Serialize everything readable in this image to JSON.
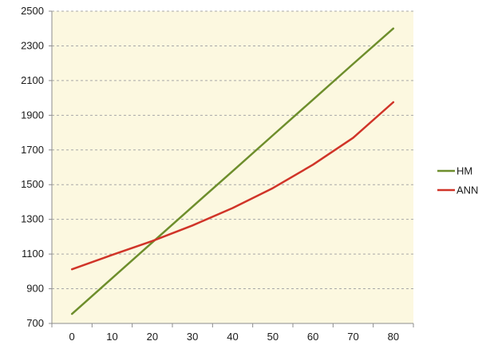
{
  "chart_data": {
    "type": "line",
    "title": "",
    "xlabel": "",
    "ylabel": "",
    "x": [
      0,
      10,
      20,
      30,
      40,
      50,
      60,
      70,
      80
    ],
    "x_tick_labels": [
      "0",
      "10",
      "20",
      "30",
      "40",
      "50",
      "60",
      "70",
      "80"
    ],
    "y_tick_labels": [
      "700",
      "900",
      "1100",
      "1300",
      "1500",
      "1700",
      "1900",
      "2100",
      "2300",
      "2500"
    ],
    "xlim": [
      -5,
      85
    ],
    "ylim": [
      700,
      2500
    ],
    "grid": true,
    "legend_position": "right",
    "plot_background": "#fcf8e0",
    "series": [
      {
        "name": "HM",
        "color": "#6e8e2c",
        "values": [
          755,
          961,
          1167,
          1373,
          1578,
          1784,
          1990,
          2196,
          2400
        ]
      },
      {
        "name": "ANN",
        "color": "#d03428",
        "values": [
          1012,
          1095,
          1175,
          1265,
          1365,
          1480,
          1615,
          1770,
          1975
        ]
      }
    ]
  }
}
